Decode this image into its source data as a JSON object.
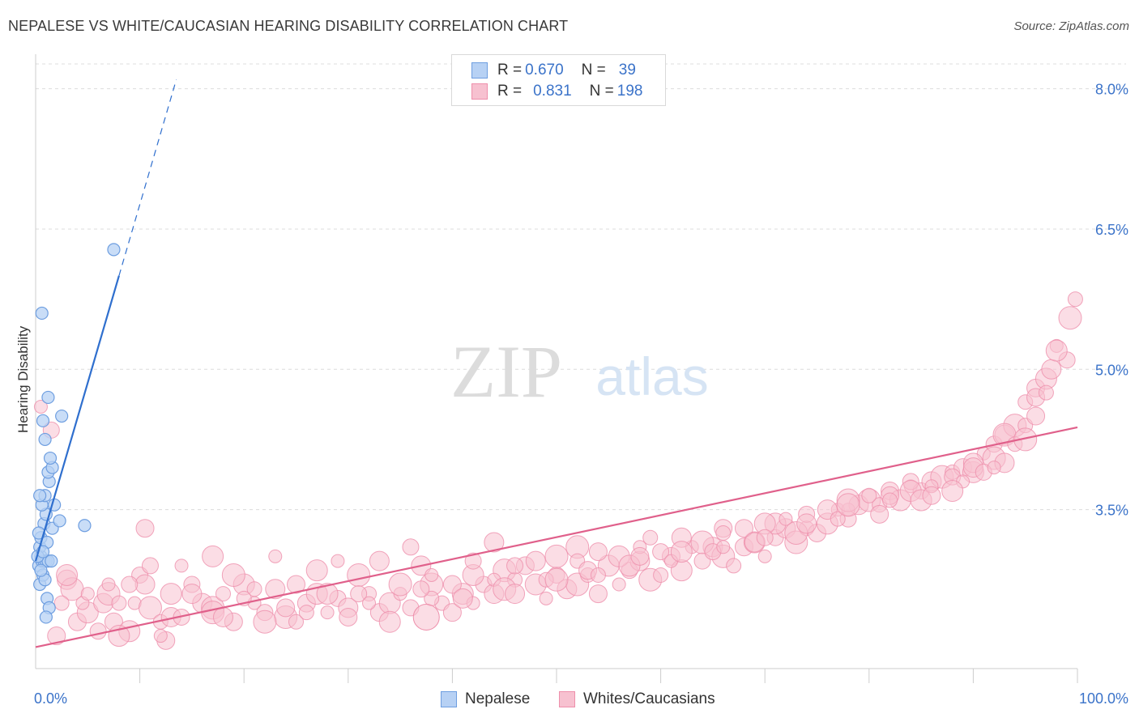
{
  "title": "NEPALESE VS WHITE/CAUCASIAN HEARING DISABILITY CORRELATION CHART",
  "source": "Source: ZipAtlas.com",
  "watermark": {
    "zip": "ZIP",
    "atlas": "atlas"
  },
  "colors": {
    "nepalese_fill": "#b7d1f4",
    "nepalese_stroke": "#6e9ee0",
    "nepalese_line": "#2f6fce",
    "white_fill": "#f7c1d0",
    "white_stroke": "#ee8fab",
    "white_line": "#e0608b",
    "axis_label": "#3b73c9",
    "grid": "#dcdcdc"
  },
  "legend": {
    "rows": [
      {
        "r_label": "R = ",
        "r_value": "0.670",
        "n_label": "N = ",
        "n_value": "39"
      },
      {
        "r_label": "R = ",
        "r_value": "0.831",
        "n_label": "N = ",
        "n_value": "198"
      }
    ]
  },
  "bottom_legend": {
    "nepalese": "Nepalese",
    "white": "Whites/Caucasians"
  },
  "chart_data": {
    "type": "scatter",
    "title": "NEPALESE VS WHITE/CAUCASIAN HEARING DISABILITY CORRELATION CHART",
    "xlabel": "",
    "ylabel": "Hearing Disability",
    "xlim": [
      0,
      100
    ],
    "ylim": [
      1.8,
      8.3
    ],
    "x_tick_labels": [
      "0.0%",
      "100.0%"
    ],
    "y_ticks": [
      3.5,
      5.0,
      6.5,
      8.0
    ],
    "y_tick_labels": [
      "3.5%",
      "5.0%",
      "6.5%",
      "8.0%"
    ],
    "series": [
      {
        "name": "Nepalese",
        "R": 0.67,
        "N": 39,
        "trend": {
          "x0": 0.0,
          "y0": 2.95,
          "x1": 8.0,
          "y1": 6.0,
          "dashed_to_x": 13.5
        },
        "points": [
          [
            0.3,
            2.9
          ],
          [
            0.5,
            3.0
          ],
          [
            0.4,
            3.1
          ],
          [
            0.6,
            2.95
          ],
          [
            0.8,
            2.95
          ],
          [
            1.0,
            2.95
          ],
          [
            1.2,
            2.95
          ],
          [
            1.5,
            2.95
          ],
          [
            0.4,
            2.7
          ],
          [
            0.7,
            2.8
          ],
          [
            0.9,
            2.75
          ],
          [
            0.5,
            3.2
          ],
          [
            0.8,
            3.35
          ],
          [
            1.0,
            3.45
          ],
          [
            0.6,
            3.55
          ],
          [
            0.9,
            3.65
          ],
          [
            0.4,
            3.65
          ],
          [
            1.3,
            3.8
          ],
          [
            1.2,
            3.9
          ],
          [
            1.6,
            3.95
          ],
          [
            1.4,
            4.05
          ],
          [
            0.9,
            4.25
          ],
          [
            0.7,
            4.45
          ],
          [
            2.5,
            4.5
          ],
          [
            1.2,
            4.7
          ],
          [
            0.6,
            5.6
          ],
          [
            1.8,
            3.55
          ],
          [
            1.6,
            3.3
          ],
          [
            2.3,
            3.38
          ],
          [
            4.7,
            3.33
          ],
          [
            1.1,
            2.55
          ],
          [
            1.3,
            2.45
          ],
          [
            1.0,
            2.35
          ],
          [
            7.5,
            6.28
          ],
          [
            0.2,
            3.0
          ],
          [
            0.5,
            2.85
          ],
          [
            1.1,
            3.15
          ],
          [
            0.3,
            3.25
          ],
          [
            0.7,
            3.05
          ]
        ]
      },
      {
        "name": "Whites/Caucasians",
        "R": 0.831,
        "N": 198,
        "trend": {
          "x0": 0.0,
          "y0": 2.03,
          "x1": 100.0,
          "y1": 4.38
        },
        "points": [
          [
            0.5,
            4.6
          ],
          [
            1.5,
            4.35
          ],
          [
            3,
            2.75
          ],
          [
            3.5,
            2.65
          ],
          [
            2.5,
            2.5
          ],
          [
            4,
            2.3
          ],
          [
            5,
            2.4
          ],
          [
            4.5,
            2.5
          ],
          [
            6,
            2.2
          ],
          [
            6.5,
            2.5
          ],
          [
            7,
            2.6
          ],
          [
            8,
            2.5
          ],
          [
            7.5,
            2.3
          ],
          [
            9,
            2.2
          ],
          [
            9.5,
            2.5
          ],
          [
            10,
            2.8
          ],
          [
            10.5,
            2.7
          ],
          [
            11,
            2.45
          ],
          [
            12,
            2.3
          ],
          [
            12.5,
            2.1
          ],
          [
            13,
            2.6
          ],
          [
            14,
            2.9
          ],
          [
            15,
            2.7
          ],
          [
            16,
            2.5
          ],
          [
            17,
            2.45
          ],
          [
            18,
            2.6
          ],
          [
            19,
            2.3
          ],
          [
            20,
            2.7
          ],
          [
            21,
            2.5
          ],
          [
            22,
            2.4
          ],
          [
            23,
            2.65
          ],
          [
            24,
            2.35
          ],
          [
            25,
            2.3
          ],
          [
            26,
            2.5
          ],
          [
            27,
            2.6
          ],
          [
            28,
            2.4
          ],
          [
            29,
            2.55
          ],
          [
            30,
            2.45
          ],
          [
            31,
            2.8
          ],
          [
            32,
            2.6
          ],
          [
            33,
            2.4
          ],
          [
            34,
            2.5
          ],
          [
            35,
            2.6
          ],
          [
            36,
            2.45
          ],
          [
            37,
            2.9
          ],
          [
            38,
            2.7
          ],
          [
            39,
            2.5
          ],
          [
            40,
            2.4
          ],
          [
            41,
            2.6
          ],
          [
            42,
            2.5
          ],
          [
            43,
            2.7
          ],
          [
            44,
            2.6
          ],
          [
            45,
            2.85
          ],
          [
            46,
            2.75
          ],
          [
            47,
            2.9
          ],
          [
            48,
            2.7
          ],
          [
            49,
            2.55
          ],
          [
            50,
            2.8
          ],
          [
            51,
            2.65
          ],
          [
            52,
            2.7
          ],
          [
            53,
            2.8
          ],
          [
            54,
            2.6
          ],
          [
            55,
            2.9
          ],
          [
            56,
            2.7
          ],
          [
            57,
            2.85
          ],
          [
            58,
            2.95
          ],
          [
            59,
            2.75
          ],
          [
            60,
            2.8
          ],
          [
            61,
            3.0
          ],
          [
            62,
            2.85
          ],
          [
            63,
            3.1
          ],
          [
            64,
            2.95
          ],
          [
            65,
            3.1
          ],
          [
            66,
            3.0
          ],
          [
            67,
            2.9
          ],
          [
            68,
            3.1
          ],
          [
            69,
            3.15
          ],
          [
            70,
            3.0
          ],
          [
            71,
            3.2
          ],
          [
            72,
            3.3
          ],
          [
            73,
            3.15
          ],
          [
            74,
            3.3
          ],
          [
            75,
            3.25
          ],
          [
            76,
            3.35
          ],
          [
            77,
            3.5
          ],
          [
            78,
            3.4
          ],
          [
            79,
            3.55
          ],
          [
            80,
            3.6
          ],
          [
            81,
            3.55
          ],
          [
            82,
            3.7
          ],
          [
            83,
            3.6
          ],
          [
            84,
            3.75
          ],
          [
            85,
            3.7
          ],
          [
            86,
            3.8
          ],
          [
            87,
            3.85
          ],
          [
            88,
            3.9
          ],
          [
            89,
            3.95
          ],
          [
            90,
            3.9
          ],
          [
            91,
            4.1
          ],
          [
            92,
            4.2
          ],
          [
            93,
            4.3
          ],
          [
            94,
            4.4
          ],
          [
            95,
            4.65
          ],
          [
            96,
            4.8
          ],
          [
            97,
            4.9
          ],
          [
            98,
            5.25
          ],
          [
            99,
            5.1
          ],
          [
            97.5,
            5.0
          ],
          [
            99.3,
            5.55
          ],
          [
            99.8,
            5.75
          ],
          [
            10.5,
            3.3
          ],
          [
            17,
            3.0
          ],
          [
            23,
            3.0
          ],
          [
            36,
            3.1
          ],
          [
            44,
            3.15
          ],
          [
            52,
            3.1
          ],
          [
            59,
            3.2
          ],
          [
            66,
            3.3
          ],
          [
            71,
            3.35
          ],
          [
            78,
            3.5
          ],
          [
            84,
            3.8
          ],
          [
            90,
            4.0
          ],
          [
            93,
            4.3
          ],
          [
            95,
            4.4
          ],
          [
            96,
            4.7
          ],
          [
            98,
            5.2
          ],
          [
            7,
            2.7
          ],
          [
            11,
            2.9
          ],
          [
            15,
            2.6
          ],
          [
            19,
            2.8
          ],
          [
            21,
            2.65
          ],
          [
            25,
            2.7
          ],
          [
            27,
            2.85
          ],
          [
            29,
            2.95
          ],
          [
            31,
            2.6
          ],
          [
            33,
            2.95
          ],
          [
            35,
            2.7
          ],
          [
            38,
            2.55
          ],
          [
            40,
            2.7
          ],
          [
            42,
            2.8
          ],
          [
            44,
            2.75
          ],
          [
            46,
            2.9
          ],
          [
            48,
            2.95
          ],
          [
            50,
            3.0
          ],
          [
            52,
            2.95
          ],
          [
            54,
            3.05
          ],
          [
            56,
            3.0
          ],
          [
            58,
            3.1
          ],
          [
            60,
            3.05
          ],
          [
            62,
            3.2
          ],
          [
            64,
            3.15
          ],
          [
            66,
            3.25
          ],
          [
            68,
            3.3
          ],
          [
            70,
            3.35
          ],
          [
            72,
            3.4
          ],
          [
            74,
            3.45
          ],
          [
            76,
            3.5
          ],
          [
            78,
            3.6
          ],
          [
            80,
            3.65
          ],
          [
            82,
            3.65
          ],
          [
            84,
            3.7
          ],
          [
            86,
            3.75
          ],
          [
            88,
            3.85
          ],
          [
            90,
            3.95
          ],
          [
            92,
            4.05
          ],
          [
            94,
            4.2
          ],
          [
            96,
            4.5
          ],
          [
            3,
            2.8
          ],
          [
            5,
            2.6
          ],
          [
            9,
            2.7
          ],
          [
            13,
            2.35
          ],
          [
            17,
            2.4
          ],
          [
            20,
            2.55
          ],
          [
            24,
            2.45
          ],
          [
            28,
            2.6
          ],
          [
            32,
            2.5
          ],
          [
            37,
            2.65
          ],
          [
            41,
            2.55
          ],
          [
            45,
            2.65
          ],
          [
            49,
            2.75
          ],
          [
            53,
            2.85
          ],
          [
            57,
            2.9
          ],
          [
            61,
            2.95
          ],
          [
            65,
            3.05
          ],
          [
            69,
            3.15
          ],
          [
            73,
            3.25
          ],
          [
            77,
            3.4
          ],
          [
            81,
            3.45
          ],
          [
            85,
            3.6
          ],
          [
            89,
            3.8
          ],
          [
            91,
            3.9
          ],
          [
            93,
            4.0
          ],
          [
            95,
            4.25
          ],
          [
            97,
            4.75
          ],
          [
            2,
            2.15
          ],
          [
            8,
            2.15
          ],
          [
            12,
            2.15
          ],
          [
            14,
            2.35
          ],
          [
            18,
            2.35
          ],
          [
            22,
            2.3
          ],
          [
            26,
            2.4
          ],
          [
            30,
            2.35
          ],
          [
            34,
            2.3
          ],
          [
            38,
            2.8
          ],
          [
            42,
            2.95
          ],
          [
            46,
            2.6
          ],
          [
            50,
            2.75
          ],
          [
            54,
            2.8
          ],
          [
            58,
            3.0
          ],
          [
            62,
            3.05
          ],
          [
            66,
            3.1
          ],
          [
            70,
            3.2
          ],
          [
            74,
            3.35
          ],
          [
            78,
            3.55
          ],
          [
            82,
            3.6
          ],
          [
            86,
            3.65
          ],
          [
            88,
            3.7
          ],
          [
            92,
            3.95
          ]
        ]
      }
    ]
  }
}
